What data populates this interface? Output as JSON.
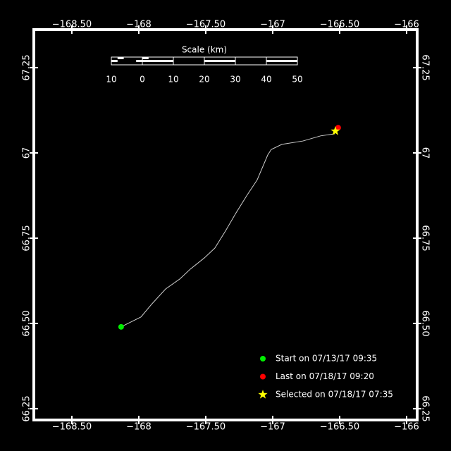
{
  "chart_data": {
    "type": "line",
    "xlim": [
      -168.784,
      -165.921
    ],
    "ylim": [
      66.2169,
      67.3616
    ],
    "xticks": [
      {
        "value": -168.5,
        "label": "−168.50"
      },
      {
        "value": -168,
        "label": "−168"
      },
      {
        "value": -167.5,
        "label": "−167.50"
      },
      {
        "value": -167,
        "label": "−167"
      },
      {
        "value": -166.5,
        "label": "−166.50"
      },
      {
        "value": -166,
        "label": "−166"
      }
    ],
    "yticks": [
      66.25,
      {
        "value": 66.5,
        "label": "66.50"
      },
      66.75,
      67,
      67.25
    ],
    "x": [
      -168.132,
      -167.984,
      -167.905,
      -167.8,
      -167.695,
      -167.616,
      -167.511,
      -167.432,
      -167.353,
      -167.274,
      -167.195,
      -167.116,
      -167.037,
      -167.011,
      -166.932,
      -166.774,
      -166.642,
      -166.537
    ],
    "y": [
      66.49,
      66.519,
      66.556,
      66.601,
      66.63,
      66.659,
      66.692,
      66.721,
      66.771,
      66.824,
      66.874,
      66.921,
      66.994,
      67.01,
      67.025,
      67.035,
      67.05,
      67.056
    ],
    "color": "#cccccc",
    "points": [
      {
        "label": "Start on 07/13/17 09:35",
        "x": -168.132,
        "y": 66.49,
        "color": "#00ee00",
        "marker": "circle"
      },
      {
        "label": "Last on 07/18/17 09:20",
        "x": -166.511,
        "y": 67.074,
        "color": "#ff0000",
        "marker": "circle"
      },
      {
        "label": "Selected on 07/18/17 07:35",
        "x": -166.532,
        "y": 67.064,
        "color": "#ffff00",
        "marker": "star"
      }
    ],
    "scale_bar": {
      "title": "Scale (km)",
      "ticks": [
        {
          "value": -10,
          "label": "10"
        },
        0,
        10,
        20,
        30,
        40,
        50
      ]
    }
  }
}
